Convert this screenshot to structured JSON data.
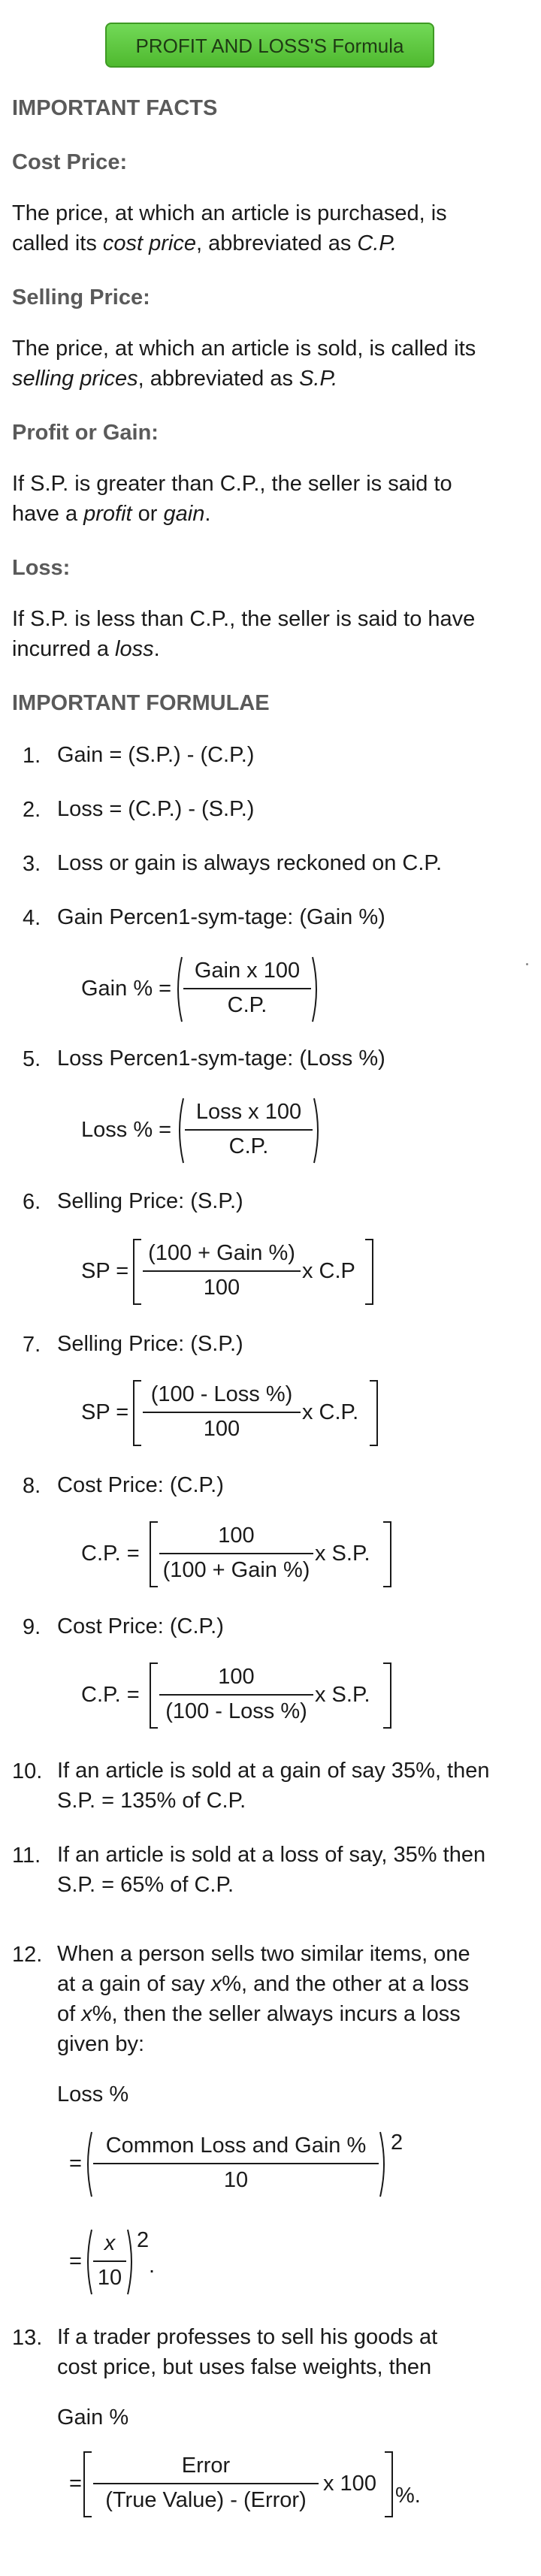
{
  "header": {
    "button_label": "PROFIT AND LOSS'S Formula"
  },
  "sections": {
    "important_facts": "IMPORTANT FACTS",
    "cost_price_title": "Cost Price:",
    "cost_price_1": "The price, at which an article is purchased, is",
    "cost_price_2a": "called its ",
    "cost_price_2b": "cost price",
    "cost_price_2c": ", abbreviated as ",
    "cost_price_2d": "C.P.",
    "selling_price_title": "Selling Price:",
    "selling_price_1": "The price, at which an article is sold, is called its",
    "selling_price_2a": "selling prices",
    "selling_price_2b": ", abbreviated as ",
    "selling_price_2c": "S.P.",
    "profit_title": "Profit or Gain:",
    "profit_1": "If S.P. is greater than C.P., the seller is said to",
    "profit_2a": "have a ",
    "profit_2b": "profit",
    "profit_2c": " or ",
    "profit_2d": "gain",
    "profit_2e": ".",
    "loss_title": "Loss:",
    "loss_1": "If S.P. is less than C.P., the seller is said to have",
    "loss_2a": "incurred a ",
    "loss_2b": "loss",
    "loss_2c": ".",
    "important_formulae": "IMPORTANT FORMULAE"
  },
  "formulae": {
    "n1": "1.",
    "t1": "Gain = (S.P.) - (C.P.)",
    "n2": "2.",
    "t2": "Loss = (C.P.) - (S.P.)",
    "n3": "3.",
    "t3": "Loss or gain is always reckoned on C.P.",
    "n4": "4.",
    "t4": "Gain Percen1-sym-tage: (Gain %)",
    "f4_lhs": "Gain % =",
    "f4_num": "Gain x 100",
    "f4_den": "C.P.",
    "n5": "5.",
    "t5": "Loss Percen1-sym-tage: (Loss %)",
    "f5_lhs": "Loss % =",
    "f5_num": "Loss x 100",
    "f5_den": "C.P.",
    "n6": "6.",
    "t6": "Selling Price: (S.P.)",
    "f6_lhs": "SP =",
    "f6_num": "(100 + Gain %)",
    "f6_den": "100",
    "f6_tail": "x C.P",
    "n7": "7.",
    "t7": "Selling Price: (S.P.)",
    "f7_lhs": "SP =",
    "f7_num": "(100 - Loss %)",
    "f7_den": "100",
    "f7_tail": "x C.P.",
    "n8": "8.",
    "t8": "Cost Price: (C.P.)",
    "f8_lhs": "C.P. =",
    "f8_num": "100",
    "f8_den": "(100 + Gain %)",
    "f8_tail": "x S.P.",
    "n9": "9.",
    "t9": "Cost Price: (C.P.)",
    "f9_lhs": "C.P. =",
    "f9_num": "100",
    "f9_den": "(100 - Loss %)",
    "f9_tail": "x S.P.",
    "n10": "10.",
    "t10a": "If an article is sold at a gain of say 35%, then",
    "t10b": "S.P. = 135% of C.P.",
    "n11": "11.",
    "t11a": "If an article is sold at a loss of say, 35% then",
    "t11b": "S.P. = 65% of C.P.",
    "n12": "12.",
    "t12a": "When a person sells two similar items, one",
    "t12b1": "at a gain of say ",
    "t12b2": "x",
    "t12b3": "%, and the other at a loss",
    "t12c1": "of ",
    "t12c2": "x",
    "t12c3": "%, then the seller always incurs a loss",
    "t12d": "given by:",
    "t12e": "Loss %",
    "f12a_eq": "=",
    "f12a_num": "Common Loss and Gain %",
    "f12a_den": "10",
    "f12a_sup": "2",
    "f12b_eq": "=",
    "f12b_num": "x",
    "f12b_den": "10",
    "f12b_sup": "2",
    "f12b_dot": ".",
    "n13": "13.",
    "t13a": "If a trader professes to sell his goods at",
    "t13b": "cost price, but uses false weights, then",
    "t13c": "Gain %",
    "f13_eq": "=",
    "f13_num": "Error",
    "f13_den": "(True Value) - (Error)",
    "f13_tail": "x 100",
    "f13_pct": "%."
  }
}
